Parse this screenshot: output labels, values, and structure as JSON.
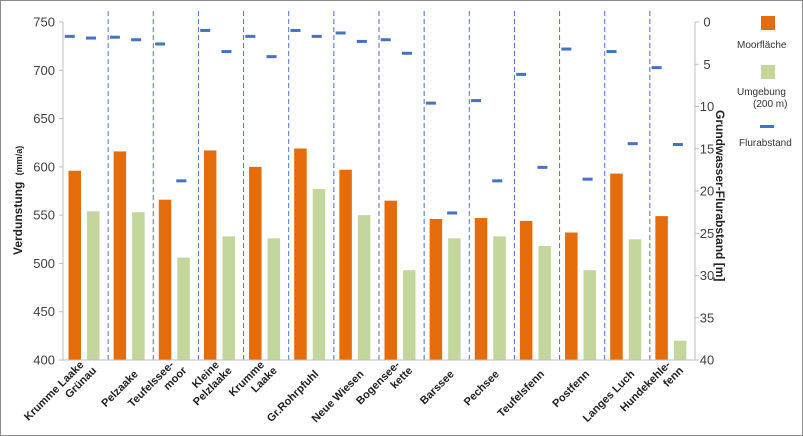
{
  "chart_data": {
    "type": "bar",
    "categories": [
      [
        "Krumme Laake",
        "Grünau"
      ],
      [
        "Pelzaake"
      ],
      [
        "Teufelssee-",
        "moor"
      ],
      [
        "Kleine",
        "Pelzlaake"
      ],
      [
        "Krumme",
        "Laake"
      ],
      [
        "Gr.Rohrpfuhl"
      ],
      [
        "Neue Wiesen"
      ],
      [
        "Bogensee-",
        "kette"
      ],
      [
        "Barssee"
      ],
      [
        "Pechsee"
      ],
      [
        "Teufelsfenn"
      ],
      [
        "Postfenn"
      ],
      [
        "Langes Luch"
      ],
      [
        "Hundekehle-",
        "fenn"
      ]
    ],
    "series": [
      {
        "name": "Moorfläche",
        "type": "bar",
        "axis": "left",
        "color": "#E46C0A",
        "values": [
          596,
          616,
          566,
          617,
          600,
          619,
          597,
          565,
          546,
          547,
          544,
          532,
          593,
          549
        ]
      },
      {
        "name": "Umgebung (200 m)",
        "type": "bar",
        "axis": "left",
        "color": "#C3D69B",
        "values": [
          554,
          553,
          506,
          528,
          526,
          577,
          550,
          493,
          526,
          528,
          518,
          493,
          525,
          420
        ]
      },
      {
        "name": "Flurabstand",
        "type": "marker",
        "axis": "right",
        "color": "#4472C4",
        "values": [
          [
            1.7,
            1.9
          ],
          [
            1.8,
            2.1
          ],
          [
            2.6,
            18.8
          ],
          [
            1.0,
            3.5
          ],
          [
            1.7,
            4.1
          ],
          [
            1.0,
            1.7
          ],
          [
            1.3,
            2.3
          ],
          [
            2.1,
            3.7
          ],
          [
            9.6,
            22.6
          ],
          [
            9.3,
            18.8
          ],
          [
            6.2,
            17.2
          ],
          [
            3.2,
            18.6
          ],
          [
            3.5,
            14.4
          ],
          [
            5.4,
            14.5
          ]
        ]
      }
    ],
    "ylabel": "Verdunstung",
    "ylabel_unit": "(mm/a)",
    "y2label": "Grundwasser-Flurabstand [m]",
    "ylim": [
      400,
      750
    ],
    "yticks": [
      400,
      450,
      500,
      550,
      600,
      650,
      700,
      750
    ],
    "y2lim": [
      40,
      0
    ],
    "y2ticks": [
      0,
      5,
      10,
      15,
      20,
      25,
      30,
      35,
      40
    ],
    "grid": false,
    "legend_position": "right"
  }
}
